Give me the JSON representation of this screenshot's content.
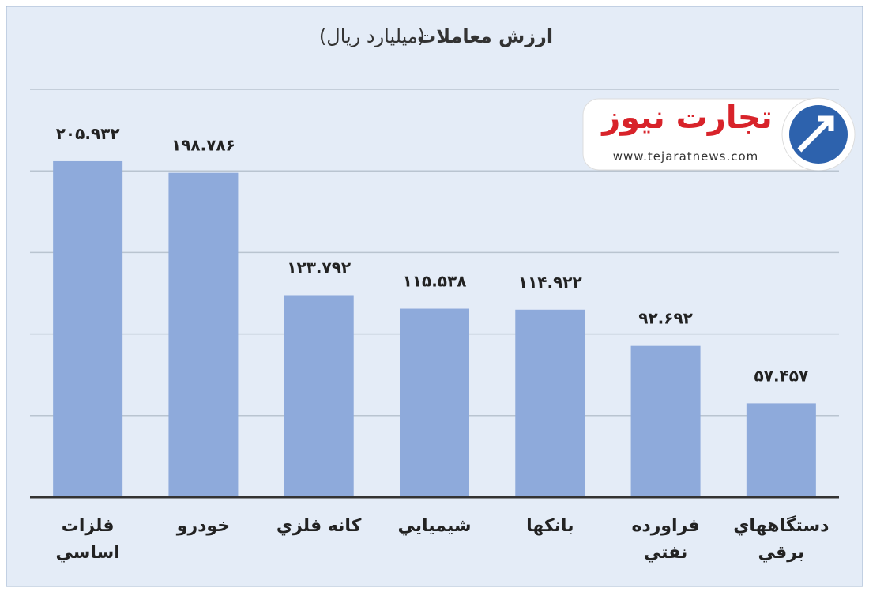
{
  "chart_data": {
    "type": "bar",
    "title": "ارزش معاملات",
    "subtitle": "(ميليارد ريال)",
    "categories": [
      "فلزات اساسي",
      "خودرو",
      "كانه فلزي",
      "شيميايي",
      "بانكها",
      "فراورده نفتي",
      "دستگاههاي برقي"
    ],
    "values": [
      205.932,
      198.786,
      123.792,
      115.538,
      114.922,
      92.692,
      57.457
    ],
    "value_labels": [
      "۲۰۵.۹۳۲",
      "۱۹۸.۷۸۶",
      "۱۲۳.۷۹۲",
      "۱۱۵.۵۳۸",
      "۱۱۴.۹۲۲",
      "۹۲.۶۹۲",
      "۵۷.۴۵۷"
    ],
    "color": "#8eaadb",
    "ylim": [
      0,
      250
    ],
    "yticks": [
      0,
      50,
      100,
      150,
      200,
      250
    ],
    "grid": true
  },
  "watermark": {
    "name": "تجارت نیوز",
    "url": "www.tejaratnews.com"
  }
}
